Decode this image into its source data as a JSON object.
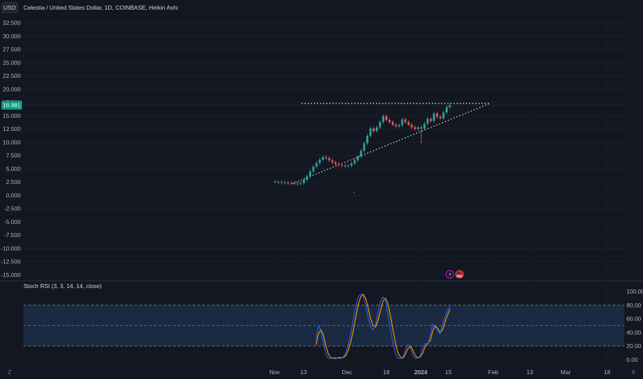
{
  "header": {
    "currency": "USD",
    "title": "Celestia / United States Dollar, 1D, COINBASE, Heikin Ashi"
  },
  "indicator": {
    "title": "Stoch RSI (3, 3, 14, 14, close)"
  },
  "current_price": {
    "label": "16.981",
    "value": 16.981,
    "color": "#089981"
  },
  "footer": {
    "left_icon": "Z",
    "right_icon": "A"
  },
  "colors": {
    "up": "#26a69a",
    "down": "#ef5350",
    "k_line": "#2962ff",
    "d_line": "#ff9800",
    "band": "#1f3a5c"
  },
  "icons": [
    "lightning-icon",
    "us-flag-icon"
  ],
  "chart_data": [
    {
      "type": "candlestick",
      "candle_style": "Heikin Ashi",
      "ylim": [
        -15,
        32.5
      ],
      "y_ticks": [
        "32.500",
        "30.000",
        "27.500",
        "25.000",
        "22.500",
        "20.000",
        "17.500",
        "15.000",
        "12.500",
        "10.000",
        "7.500",
        "5.000",
        "2.500",
        "0.000",
        "-2.500",
        "-5.000",
        "-7.500",
        "-10.000",
        "-12.500",
        "-15.000"
      ],
      "x_ticks": [
        "Nov",
        "13",
        "Dec",
        "18",
        "2024",
        "15",
        "Feb",
        "13",
        "Mar",
        "18"
      ],
      "candles": [
        [
          2.6,
          2.6
        ],
        [
          2.5,
          2.5
        ],
        [
          2.5,
          2.4
        ],
        [
          2.4,
          2.4
        ],
        [
          2.4,
          2.3
        ],
        [
          2.3,
          2.3
        ],
        [
          2.3,
          2.2
        ],
        [
          2.2,
          2.2
        ],
        [
          2.2,
          2.3
        ],
        [
          2.3,
          2.9
        ],
        [
          2.9,
          3.6
        ],
        [
          3.6,
          4.5
        ],
        [
          4.5,
          5.4
        ],
        [
          5.4,
          6.1
        ],
        [
          6.1,
          6.7
        ],
        [
          6.7,
          7.2
        ],
        [
          7.2,
          7.0
        ],
        [
          7.0,
          6.6
        ],
        [
          6.6,
          6.2
        ],
        [
          6.2,
          5.9
        ],
        [
          5.9,
          5.7
        ],
        [
          5.7,
          5.6
        ],
        [
          5.6,
          5.5
        ],
        [
          5.5,
          5.6
        ],
        [
          5.6,
          6.0
        ],
        [
          6.0,
          6.6
        ],
        [
          6.6,
          7.3
        ],
        [
          7.3,
          8.4
        ],
        [
          8.4,
          9.8
        ],
        [
          9.8,
          11.2
        ],
        [
          11.2,
          12.6
        ],
        [
          12.6,
          12.1
        ],
        [
          12.1,
          12.8
        ],
        [
          12.8,
          13.8
        ],
        [
          13.8,
          14.9
        ],
        [
          14.9,
          14.2
        ],
        [
          14.2,
          13.8
        ],
        [
          13.8,
          13.3
        ],
        [
          13.3,
          13.0
        ],
        [
          13.0,
          13.2
        ],
        [
          13.2,
          14.3
        ],
        [
          14.3,
          13.8
        ],
        [
          13.8,
          13.3
        ],
        [
          13.3,
          12.8
        ],
        [
          12.8,
          12.5
        ],
        [
          12.5,
          12.8
        ],
        [
          12.8,
          12.6
        ],
        [
          12.6,
          13.5
        ],
        [
          13.5,
          14.4
        ],
        [
          14.4,
          14.0
        ],
        [
          14.0,
          15.4
        ],
        [
          15.4,
          14.8
        ],
        [
          14.8,
          14.5
        ],
        [
          14.5,
          15.6
        ],
        [
          15.6,
          16.6
        ],
        [
          16.6,
          17.0
        ]
      ],
      "price_levels": {
        "resistance": 17.3,
        "support_start": 2.2,
        "support_end": 17.3
      }
    },
    {
      "type": "line",
      "name": "Stoch RSI",
      "ylim": [
        0,
        100
      ],
      "y_ticks": [
        "100.00",
        "80.00",
        "60.00",
        "40.00",
        "20.00",
        "0.00"
      ],
      "bands": [
        20,
        50,
        80
      ],
      "k": [
        30,
        50,
        42,
        25,
        8,
        2,
        2,
        3,
        3,
        2,
        2,
        4,
        10,
        22,
        38,
        58,
        78,
        92,
        96,
        94,
        80,
        62,
        48,
        44,
        52,
        70,
        86,
        92,
        86,
        66,
        44,
        24,
        8,
        2,
        2,
        3,
        14,
        22,
        18,
        6,
        2,
        2,
        6,
        18,
        24,
        22,
        36,
        52,
        48,
        42,
        38,
        52,
        64,
        72,
        79
      ],
      "d": [
        22,
        38,
        44,
        36,
        20,
        8,
        3,
        2,
        2,
        3,
        3,
        3,
        6,
        14,
        26,
        42,
        62,
        80,
        92,
        96,
        90,
        76,
        60,
        50,
        48,
        58,
        72,
        86,
        90,
        82,
        64,
        44,
        24,
        10,
        4,
        2,
        8,
        16,
        20,
        14,
        6,
        3,
        4,
        10,
        20,
        24,
        28,
        42,
        50,
        46,
        40,
        44,
        56,
        66,
        74
      ]
    }
  ]
}
